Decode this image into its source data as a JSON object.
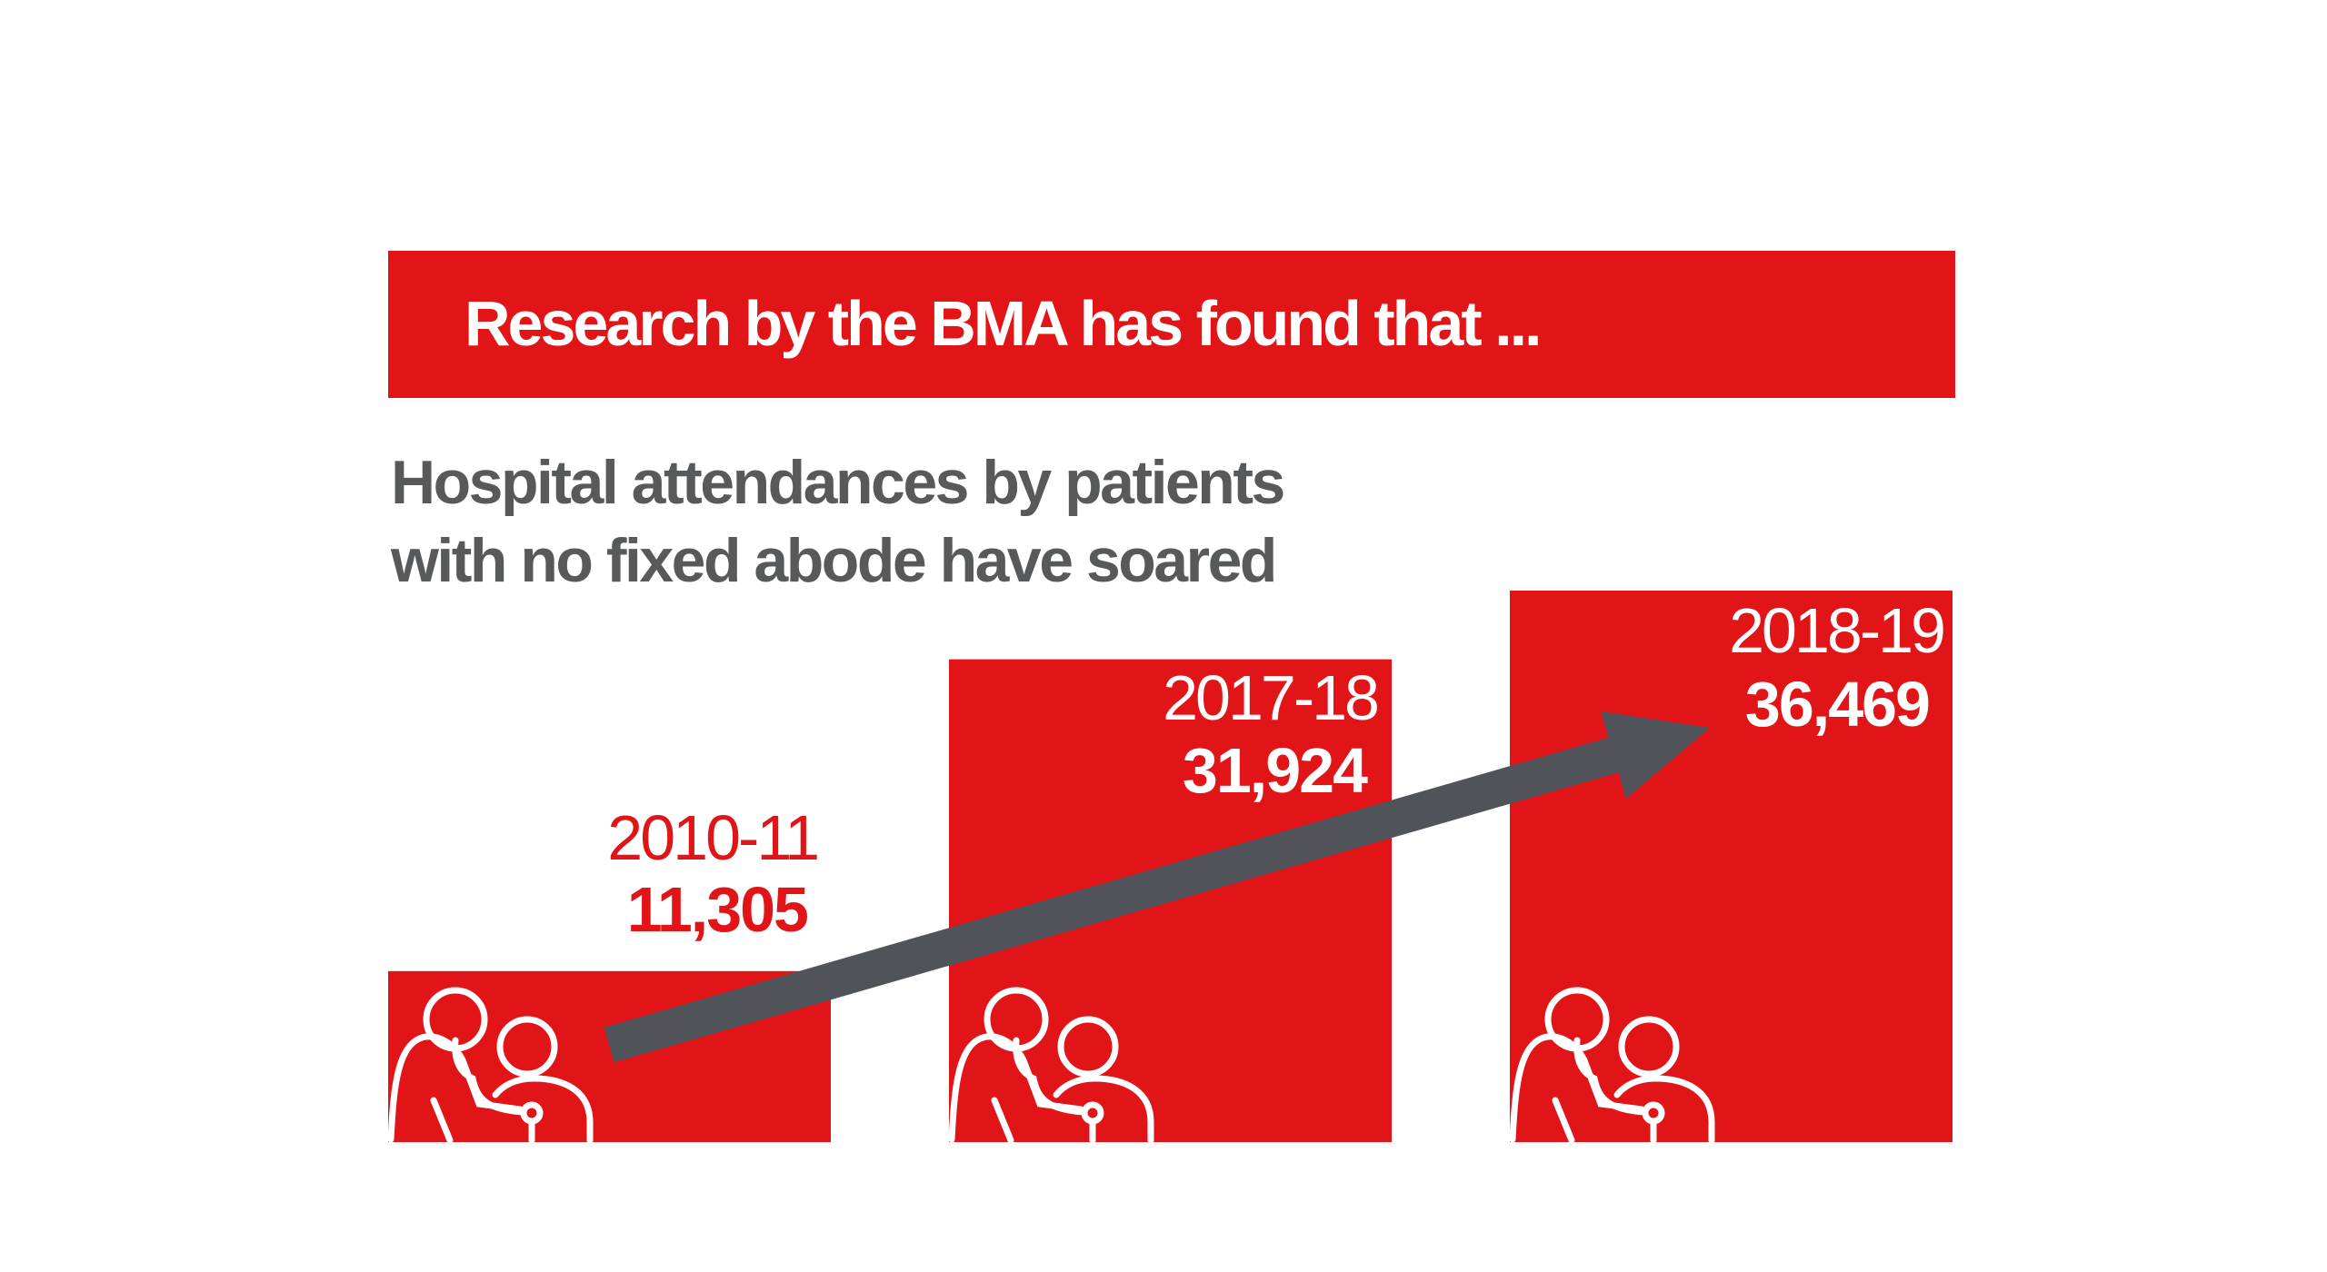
{
  "banner": {
    "text": "Research by the BMA has found that ..."
  },
  "subtitle": {
    "line1": "Hospital attendances by patients",
    "line2": "with no fixed abode have soared"
  },
  "colors": {
    "bar": "#e11418",
    "arrow": "#505359",
    "subtitle": "#58595b",
    "label_outside": "#e11418",
    "label_inside": "#ffffff"
  },
  "icons": {
    "bar_icon": "doctor-patient-stethoscope-icon",
    "trend": "up-arrow-icon"
  },
  "chart_data": {
    "type": "bar",
    "title": "Hospital attendances by patients with no fixed abode have soared",
    "categories": [
      "2010-11",
      "2017-18",
      "2018-19"
    ],
    "values": [
      11305,
      31924,
      36469
    ],
    "value_labels": [
      "11,305",
      "31,924",
      "36,469"
    ],
    "xlabel": "",
    "ylabel": "",
    "ylim": [
      0,
      36469
    ],
    "grid": false,
    "annotations": [
      "upward trend arrow"
    ]
  }
}
